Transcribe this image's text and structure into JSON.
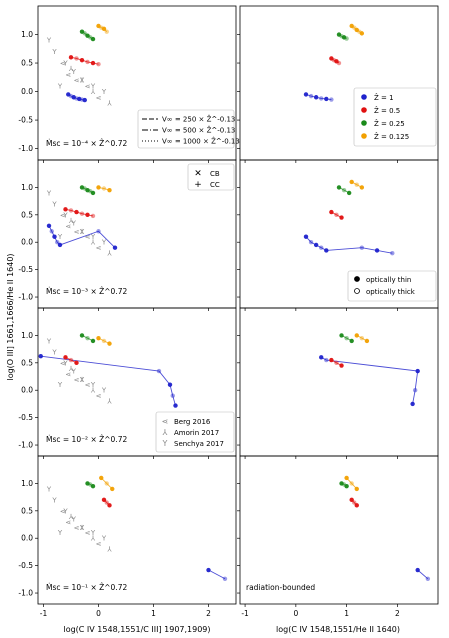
{
  "figure": {
    "xlabel_left": "log(C IV 1548,1551/C III] 1907,1909)",
    "xlabel_right": "log(C IV 1548,1551/He II 1640)",
    "ylabel": "log(O III] 1661,1666/He II 1640)",
    "row_labels": [
      "Ṁsc = 10⁻⁴ × Ẑ^0.72",
      "Ṁsc = 10⁻³ × Ẑ^0.72",
      "Ṁsc = 10⁻² × Ẑ^0.72",
      "Ṁsc = 10⁻¹ × Ẑ^0.72"
    ],
    "bottom_right_note": "radiation-bounded",
    "legend_velocity": [
      "V∞ = 250 × Ẑ^-0.13",
      "V∞ = 500 × Ẑ^-0.13",
      "V∞ = 1000 × Ẑ^-0.13"
    ],
    "legend_metallicity": [
      {
        "label": "Ẑ = 1",
        "color": "#1f22cc"
      },
      {
        "label": "Ẑ = 0.5",
        "color": "#e01010"
      },
      {
        "label": "Ẑ = 0.25",
        "color": "#1a8a1a"
      },
      {
        "label": "Ẑ = 0.125",
        "color": "#f2a000"
      }
    ],
    "legend_geometry": [
      "CB",
      "CC"
    ],
    "legend_depth": [
      "optically thin",
      "optically thick"
    ],
    "legend_obs": [
      "Berg 2016",
      "Amorin 2017",
      "Senchya 2017"
    ]
  },
  "chart_data": {
    "type": "scatter",
    "grid": false,
    "panels": [
      {
        "row": 0,
        "col": 0,
        "xlim": [
          -1.1,
          2.5
        ],
        "ylim": [
          -1.2,
          1.5
        ],
        "series": [
          {
            "name": "Ẑ = 1",
            "color": "#1f22cc",
            "x": [
              -0.55,
              -0.5,
              -0.45,
              -0.4,
              -0.35,
              -0.3,
              -0.25
            ],
            "y": [
              -0.05,
              -0.08,
              -0.1,
              -0.12,
              -0.13,
              -0.14,
              -0.15
            ]
          },
          {
            "name": "Ẑ = 0.5",
            "color": "#e01010",
            "x": [
              -0.5,
              -0.4,
              -0.3,
              -0.2,
              -0.1,
              0.0
            ],
            "y": [
              0.6,
              0.58,
              0.55,
              0.52,
              0.5,
              0.48
            ]
          },
          {
            "name": "Ẑ = 0.25",
            "color": "#1a8a1a",
            "x": [
              -0.3,
              -0.25,
              -0.2,
              -0.15,
              -0.1
            ],
            "y": [
              1.05,
              1.02,
              0.98,
              0.95,
              0.92
            ]
          },
          {
            "name": "Ẑ = 0.125",
            "color": "#f2a000",
            "x": [
              0.0,
              0.05,
              0.1,
              0.15
            ],
            "y": [
              1.15,
              1.12,
              1.1,
              1.05
            ]
          }
        ]
      },
      {
        "row": 0,
        "col": 1,
        "xlim": [
          -1.1,
          2.8
        ],
        "ylim": [
          -1.2,
          1.5
        ],
        "series": [
          {
            "name": "Ẑ = 1",
            "color": "#1f22cc",
            "x": [
              0.2,
              0.3,
              0.4,
              0.5,
              0.6,
              0.7
            ],
            "y": [
              -0.05,
              -0.08,
              -0.1,
              -0.12,
              -0.13,
              -0.14
            ]
          },
          {
            "name": "Ẑ = 0.5",
            "color": "#e01010",
            "x": [
              0.7,
              0.75,
              0.8,
              0.85
            ],
            "y": [
              0.58,
              0.55,
              0.53,
              0.5
            ]
          },
          {
            "name": "Ẑ = 0.25",
            "color": "#1a8a1a",
            "x": [
              0.85,
              0.9,
              0.95,
              1.0
            ],
            "y": [
              1.0,
              0.97,
              0.95,
              0.93
            ]
          },
          {
            "name": "Ẑ = 0.125",
            "color": "#f2a000",
            "x": [
              1.1,
              1.15,
              1.2,
              1.25,
              1.3
            ],
            "y": [
              1.15,
              1.12,
              1.08,
              1.05,
              1.02
            ]
          }
        ]
      },
      {
        "row": 1,
        "col": 0,
        "xlim": [
          -1.1,
          2.5
        ],
        "ylim": [
          -1.2,
          1.5
        ],
        "series": [
          {
            "name": "Ẑ = 1",
            "color": "#1f22cc",
            "x": [
              -0.9,
              -0.85,
              -0.8,
              -0.75,
              -0.7,
              0.0,
              0.3
            ],
            "y": [
              0.3,
              0.2,
              0.1,
              0.0,
              -0.05,
              0.2,
              -0.1
            ]
          },
          {
            "name": "Ẑ = 0.5",
            "color": "#e01010",
            "x": [
              -0.6,
              -0.5,
              -0.4,
              -0.3,
              -0.2,
              -0.1
            ],
            "y": [
              0.6,
              0.58,
              0.55,
              0.52,
              0.5,
              0.48
            ]
          },
          {
            "name": "Ẑ = 0.25",
            "color": "#1a8a1a",
            "x": [
              -0.3,
              -0.25,
              -0.2,
              -0.15,
              -0.1
            ],
            "y": [
              1.0,
              0.98,
              0.95,
              0.93,
              0.9
            ]
          },
          {
            "name": "Ẑ = 0.125",
            "color": "#f2a000",
            "x": [
              0.0,
              0.1,
              0.2
            ],
            "y": [
              1.0,
              0.98,
              0.95
            ]
          }
        ]
      },
      {
        "row": 1,
        "col": 1,
        "xlim": [
          -1.1,
          2.8
        ],
        "ylim": [
          -1.2,
          1.5
        ],
        "series": [
          {
            "name": "Ẑ = 1",
            "color": "#1f22cc",
            "x": [
              0.2,
              0.3,
              0.4,
              0.5,
              0.6,
              1.3,
              1.6,
              1.9
            ],
            "y": [
              0.1,
              0.0,
              -0.05,
              -0.1,
              -0.15,
              -0.1,
              -0.15,
              -0.2
            ]
          },
          {
            "name": "Ẑ = 0.5",
            "color": "#e01010",
            "x": [
              0.7,
              0.8,
              0.9
            ],
            "y": [
              0.55,
              0.5,
              0.45
            ]
          },
          {
            "name": "Ẑ = 0.25",
            "color": "#1a8a1a",
            "x": [
              0.85,
              0.95,
              1.05
            ],
            "y": [
              1.0,
              0.95,
              0.9
            ]
          },
          {
            "name": "Ẑ = 0.125",
            "color": "#f2a000",
            "x": [
              1.1,
              1.2,
              1.3
            ],
            "y": [
              1.1,
              1.05,
              1.0
            ]
          }
        ]
      },
      {
        "row": 2,
        "col": 0,
        "xlim": [
          -1.1,
          2.5
        ],
        "ylim": [
          -1.2,
          1.5
        ],
        "series": [
          {
            "name": "Ẑ = 1",
            "color": "#1f22cc",
            "x": [
              -1.05,
              1.1,
              1.3,
              1.35,
              1.4
            ],
            "y": [
              0.62,
              0.35,
              0.1,
              -0.1,
              -0.28
            ]
          },
          {
            "name": "Ẑ = 0.5",
            "color": "#e01010",
            "x": [
              -0.6,
              -0.5,
              -0.4
            ],
            "y": [
              0.6,
              0.55,
              0.5
            ]
          },
          {
            "name": "Ẑ = 0.25",
            "color": "#1a8a1a",
            "x": [
              -0.3,
              -0.2,
              -0.1
            ],
            "y": [
              1.0,
              0.95,
              0.9
            ]
          },
          {
            "name": "Ẑ = 0.125",
            "color": "#f2a000",
            "x": [
              0.0,
              0.1,
              0.2
            ],
            "y": [
              0.95,
              0.9,
              0.85
            ]
          }
        ]
      },
      {
        "row": 2,
        "col": 1,
        "xlim": [
          -1.1,
          2.8
        ],
        "ylim": [
          -1.2,
          1.5
        ],
        "series": [
          {
            "name": "Ẑ = 1",
            "color": "#1f22cc",
            "x": [
              0.5,
              0.6,
              2.4,
              2.35,
              2.3
            ],
            "y": [
              0.6,
              0.55,
              0.35,
              0.0,
              -0.25
            ]
          },
          {
            "name": "Ẑ = 0.5",
            "color": "#e01010",
            "x": [
              0.7,
              0.8,
              0.9
            ],
            "y": [
              0.55,
              0.5,
              0.45
            ]
          },
          {
            "name": "Ẑ = 0.25",
            "color": "#1a8a1a",
            "x": [
              0.9,
              1.0,
              1.1
            ],
            "y": [
              1.0,
              0.95,
              0.9
            ]
          },
          {
            "name": "Ẑ = 0.125",
            "color": "#f2a000",
            "x": [
              1.2,
              1.3,
              1.4
            ],
            "y": [
              1.0,
              0.95,
              0.9
            ]
          }
        ]
      },
      {
        "row": 3,
        "col": 0,
        "xlim": [
          -1.1,
          2.5
        ],
        "ylim": [
          -1.2,
          1.5
        ],
        "series": [
          {
            "name": "Ẑ = 1",
            "color": "#1f22cc",
            "x": [
              2.0,
              2.3
            ],
            "y": [
              -0.58,
              -0.74
            ]
          },
          {
            "name": "Ẑ = 0.5",
            "color": "#e01010",
            "x": [
              0.1,
              0.15,
              0.2
            ],
            "y": [
              0.7,
              0.65,
              0.6
            ]
          },
          {
            "name": "Ẑ = 0.25",
            "color": "#1a8a1a",
            "x": [
              -0.2,
              -0.15,
              -0.1
            ],
            "y": [
              1.0,
              0.98,
              0.95
            ]
          },
          {
            "name": "Ẑ = 0.125",
            "color": "#f2a000",
            "x": [
              0.05,
              0.15,
              0.25
            ],
            "y": [
              1.1,
              1.0,
              0.9
            ]
          }
        ]
      },
      {
        "row": 3,
        "col": 1,
        "xlim": [
          -1.1,
          2.8
        ],
        "ylim": [
          -1.2,
          1.5
        ],
        "series": [
          {
            "name": "Ẑ = 1",
            "color": "#1f22cc",
            "x": [
              2.4,
              2.6
            ],
            "y": [
              -0.58,
              -0.74
            ]
          },
          {
            "name": "Ẑ = 0.5",
            "color": "#e01010",
            "x": [
              1.1,
              1.15,
              1.2
            ],
            "y": [
              0.7,
              0.65,
              0.6
            ]
          },
          {
            "name": "Ẑ = 0.25",
            "color": "#1a8a1a",
            "x": [
              0.9,
              0.95,
              1.0
            ],
            "y": [
              1.0,
              0.98,
              0.95
            ]
          },
          {
            "name": "Ẑ = 0.125",
            "color": "#f2a000",
            "x": [
              1.0,
              1.1,
              1.2
            ],
            "y": [
              1.1,
              1.0,
              0.9
            ]
          }
        ]
      }
    ],
    "observations": {
      "Berg 2016": {
        "x": [
          -0.65,
          -0.55,
          -0.4,
          -0.2,
          0.0
        ],
        "y": [
          0.5,
          0.3,
          0.2,
          0.1,
          -0.1
        ]
      },
      "Amorin 2017": {
        "x": [
          -0.5,
          -0.3,
          -0.1,
          0.2
        ],
        "y": [
          0.4,
          0.2,
          0.0,
          -0.2
        ]
      },
      "Senchya 2017": {
        "x": [
          -0.8,
          -0.6,
          -0.45,
          -0.3,
          -0.1,
          0.1,
          -0.9,
          -0.7
        ],
        "y": [
          0.7,
          0.5,
          0.35,
          0.2,
          0.1,
          0.0,
          0.9,
          0.1
        ]
      }
    }
  }
}
